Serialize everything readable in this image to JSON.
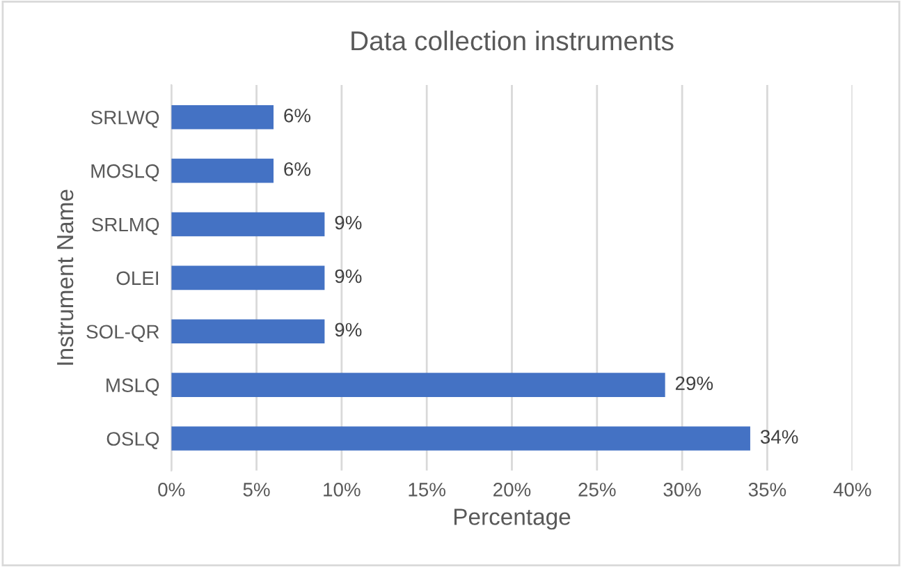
{
  "chart_data": {
    "type": "bar",
    "orientation": "horizontal",
    "title": "Data collection instruments",
    "xlabel": "Percentage",
    "ylabel": "Instrument Name",
    "categories": [
      "SRLWQ",
      "MOSLQ",
      "SRLMQ",
      "OLEI",
      "SOL-QR",
      "MSLQ",
      "OSLQ"
    ],
    "values": [
      6,
      6,
      9,
      9,
      9,
      29,
      34
    ],
    "value_labels": [
      "6%",
      "6%",
      "9%",
      "9%",
      "9%",
      "29%",
      "34%"
    ],
    "color": "#4472c4",
    "xlim": [
      0,
      40
    ],
    "xticks": [
      {
        "value": 0,
        "label": "0%"
      },
      {
        "value": 5,
        "label": "5%"
      },
      {
        "value": 10,
        "label": "10%"
      },
      {
        "value": 15,
        "label": "15%"
      },
      {
        "value": 20,
        "label": "20%"
      },
      {
        "value": 25,
        "label": "25%"
      },
      {
        "value": 30,
        "label": "30%"
      },
      {
        "value": 35,
        "label": "35%"
      },
      {
        "value": 40,
        "label": "40%"
      }
    ],
    "grid": "x"
  }
}
